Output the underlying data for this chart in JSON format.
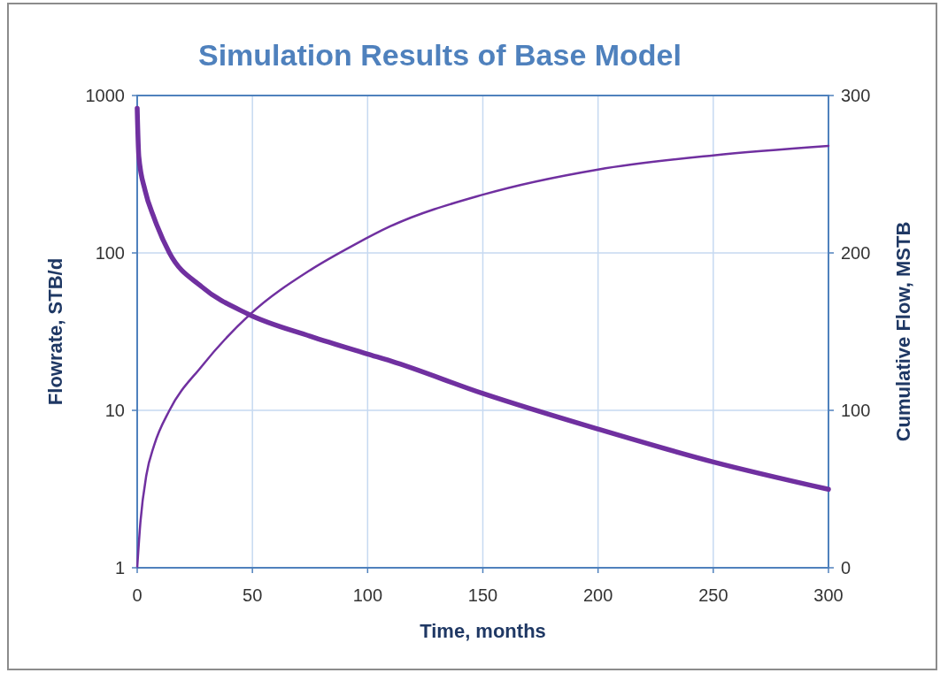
{
  "chart_data": {
    "type": "line",
    "title": "Simulation Results of Base Model",
    "xlabel": "Time, months",
    "ylabel": "Flowrate, STB/d",
    "y2label": "Cumulative Flow, MSTB",
    "log": "y",
    "grid": true,
    "xlim": [
      0,
      300
    ],
    "xticks": [
      0,
      50,
      100,
      150,
      200,
      250,
      300
    ],
    "ylim": [
      1,
      1000
    ],
    "yticks": [
      1,
      10,
      100,
      1000
    ],
    "y2lim": [
      0,
      300
    ],
    "y2ticks": [
      0,
      100,
      200,
      300
    ],
    "series": [
      {
        "color": "#7030a0",
        "x": [
          0,
          0.7,
          3.4,
          7.4,
          14,
          28,
          48,
          75,
          100,
          110,
          150,
          200,
          250,
          300
        ],
        "values": [
          830,
          411,
          250,
          166,
          100,
          61,
          41,
          29.6,
          22.8,
          20.6,
          12.8,
          7.6,
          4.7,
          3.15
        ]
      },
      {
        "color": "#7030a0",
        "axis": "y2",
        "x": [
          0,
          1.4,
          4,
          7.4,
          14,
          28,
          49,
          75,
          94,
          110,
          150,
          200,
          250,
          300
        ],
        "values": [
          0,
          29,
          59,
          78,
          100,
          128,
          161,
          189,
          205,
          217,
          237,
          253,
          262,
          268
        ]
      }
    ]
  }
}
